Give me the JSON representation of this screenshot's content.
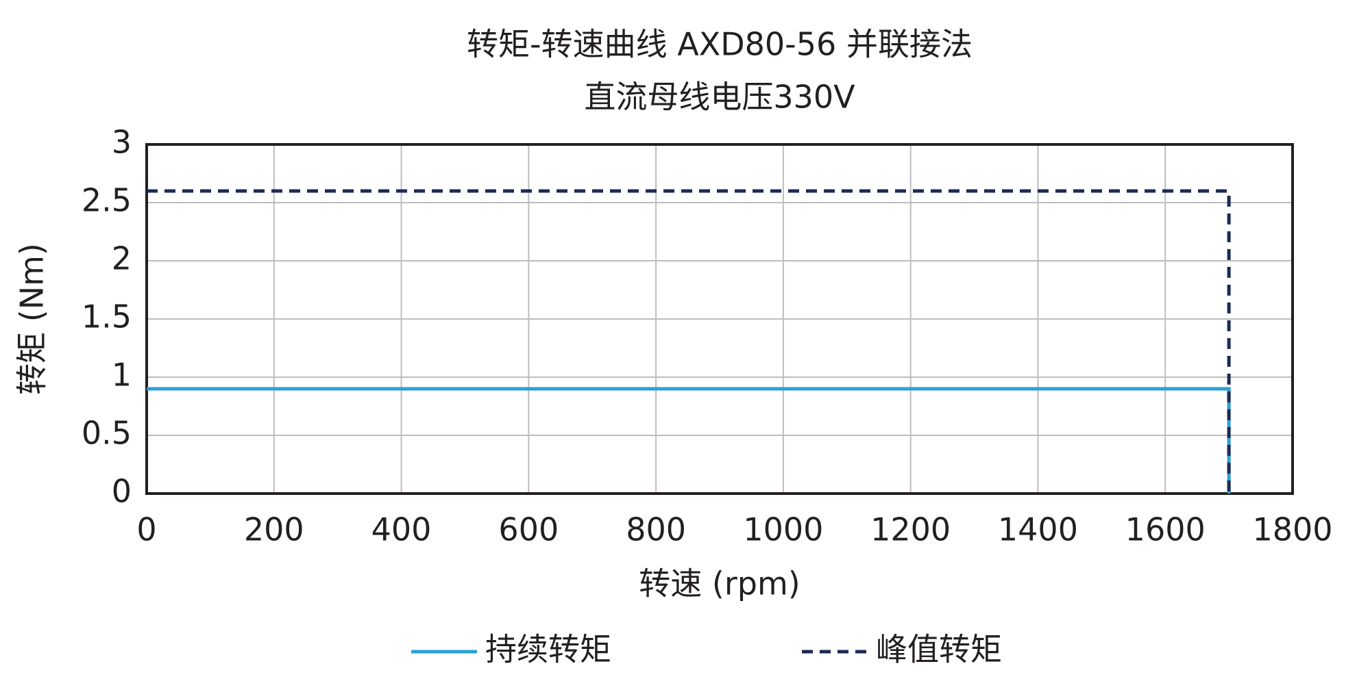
{
  "chart_data": {
    "type": "line",
    "title": "转矩-转速曲线 AXD80-56 并联接法",
    "subtitle": "直流母线电压330V",
    "x_label": "转速 (rpm)",
    "y_label": "转矩 (Nm)",
    "x": [
      0,
      1700,
      1700
    ],
    "series": [
      {
        "name": "持续转矩",
        "color": "#2a9fd8",
        "linestyle": "solid",
        "values": [
          0.9,
          0.9,
          0
        ]
      },
      {
        "name": "峰值转矩",
        "color": "#1c2a55",
        "linestyle": "dashed",
        "values": [
          2.6,
          2.6,
          0
        ]
      }
    ],
    "xlim": [
      0,
      1800
    ],
    "xticks": [
      0,
      200,
      400,
      600,
      800,
      1000,
      1200,
      1400,
      1600,
      1800
    ],
    "ylim": [
      0,
      3
    ],
    "yticks": [
      0,
      0.5,
      1,
      1.5,
      2,
      2.5,
      3
    ],
    "grid": true,
    "legend": "bottom"
  }
}
